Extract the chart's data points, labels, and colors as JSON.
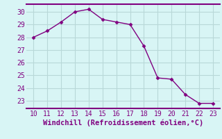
{
  "x": [
    10,
    11,
    12,
    13,
    14,
    15,
    16,
    17,
    18,
    19,
    20,
    21,
    22,
    23
  ],
  "y": [
    28.0,
    28.5,
    29.2,
    30.0,
    30.2,
    29.4,
    29.2,
    29.0,
    27.3,
    24.8,
    24.7,
    23.5,
    22.8,
    22.8
  ],
  "line_color": "#800080",
  "marker": "D",
  "marker_size": 2.5,
  "bg_color": "#d8f5f5",
  "grid_color": "#b8d8d8",
  "xlabel": "Windchill (Refroidissement éolien,°C)",
  "xlabel_color": "#800080",
  "xlabel_fontsize": 7.5,
  "tick_color": "#800080",
  "tick_fontsize": 7,
  "xlim": [
    9.5,
    23.5
  ],
  "ylim": [
    22.4,
    30.6
  ],
  "yticks": [
    23,
    24,
    25,
    26,
    27,
    28,
    29,
    30
  ],
  "xticks": [
    10,
    11,
    12,
    13,
    14,
    15,
    16,
    17,
    18,
    19,
    20,
    21,
    22,
    23
  ],
  "border_color": "#800080",
  "border_linewidth": 1.5
}
